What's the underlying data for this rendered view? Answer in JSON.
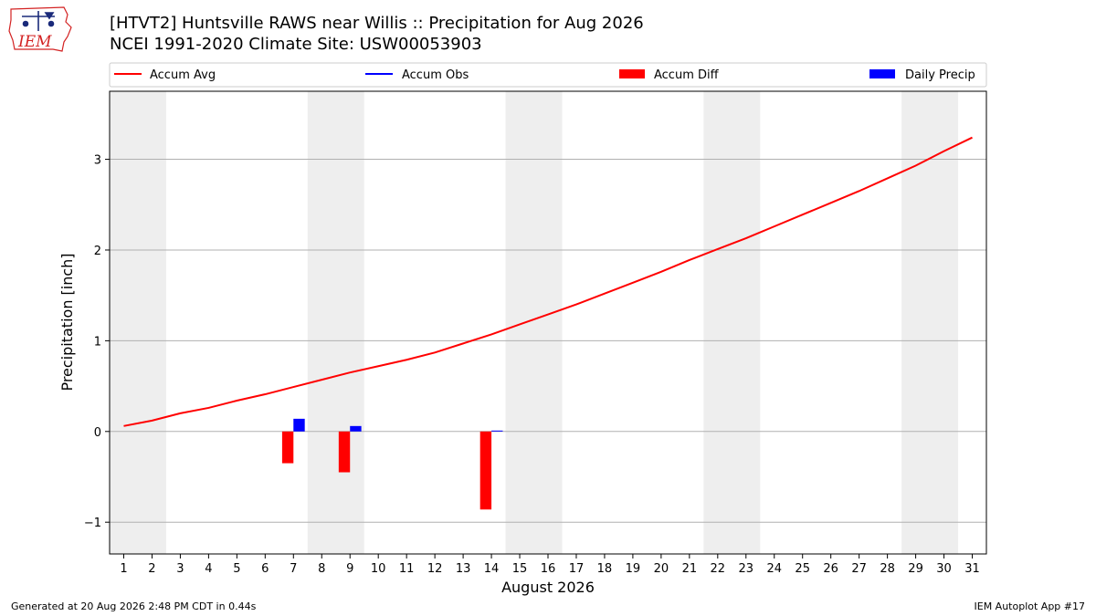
{
  "header": {
    "title_line1": "[HTVT2] Huntsville RAWS near Willis :: Precipitation for Aug 2026",
    "title_line2": "NCEI 1991-2020 Climate Site: USW00053903"
  },
  "logo": {
    "text": "IEM",
    "color": "#d32222"
  },
  "footer": {
    "generated": "Generated at 20 Aug 2026 2:48 PM CDT in 0.44s",
    "app": "IEM Autoplot App #17"
  },
  "chart_data": {
    "type": "bar",
    "xlabel": "August 2026",
    "ylabel": "Precipitation [inch]",
    "xlim": [
      0.5,
      31.5
    ],
    "ylim": [
      -1.35,
      3.75
    ],
    "yticks": [
      -1,
      0,
      1,
      2,
      3
    ],
    "ytick_labels": [
      "−1",
      "0",
      "1",
      "2",
      "3"
    ],
    "xticks": [
      1,
      2,
      3,
      4,
      5,
      6,
      7,
      8,
      9,
      10,
      11,
      12,
      13,
      14,
      15,
      16,
      17,
      18,
      19,
      20,
      21,
      22,
      23,
      24,
      25,
      26,
      27,
      28,
      29,
      30,
      31
    ],
    "grid": "y",
    "weekend_shading": [
      [
        0.5,
        2.5
      ],
      [
        7.5,
        9.5
      ],
      [
        14.5,
        16.5
      ],
      [
        21.5,
        23.5
      ],
      [
        28.5,
        30.5
      ]
    ],
    "legend": {
      "placement": "top",
      "entries": [
        {
          "label": "Accum Avg",
          "kind": "line",
          "color": "#ff0000"
        },
        {
          "label": "Accum Obs",
          "kind": "line",
          "color": "#0000ff"
        },
        {
          "label": "Accum Diff",
          "kind": "bar",
          "color": "#ff0000"
        },
        {
          "label": "Daily Precip",
          "kind": "bar",
          "color": "#0000ff"
        }
      ]
    },
    "series": [
      {
        "name": "Accum Avg",
        "type": "line",
        "color": "#ff0000",
        "x": [
          1,
          2,
          3,
          4,
          5,
          6,
          7,
          8,
          9,
          10,
          11,
          12,
          13,
          14,
          15,
          16,
          17,
          18,
          19,
          20,
          21,
          22,
          23,
          24,
          25,
          26,
          27,
          28,
          29,
          30,
          31
        ],
        "values": [
          0.06,
          0.12,
          0.2,
          0.26,
          0.34,
          0.41,
          0.49,
          0.57,
          0.65,
          0.72,
          0.79,
          0.87,
          0.97,
          1.07,
          1.18,
          1.29,
          1.4,
          1.52,
          1.64,
          1.76,
          1.89,
          2.01,
          2.13,
          2.26,
          2.39,
          2.52,
          2.65,
          2.79,
          2.93,
          3.09,
          3.24
        ]
      },
      {
        "name": "Accum Diff",
        "type": "bar",
        "color": "#ff0000",
        "x": [
          7,
          9,
          14
        ],
        "values": [
          -0.35,
          -0.45,
          -0.86
        ]
      },
      {
        "name": "Daily Precip",
        "type": "bar",
        "color": "#0000ff",
        "x": [
          7,
          9,
          14
        ],
        "values": [
          0.14,
          0.06,
          0.01
        ]
      }
    ]
  }
}
